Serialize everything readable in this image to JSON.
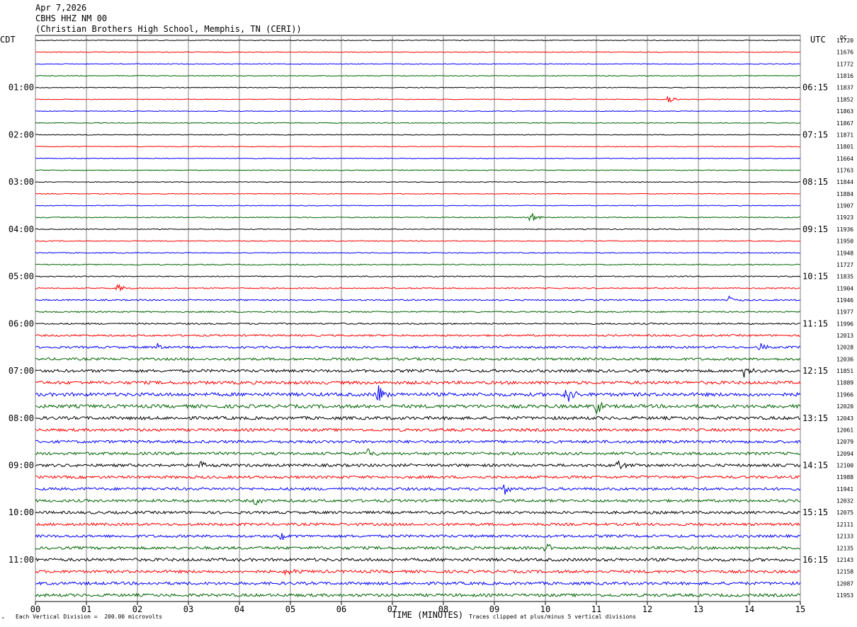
{
  "header": {
    "date": "Apr 7,2026",
    "station": "CBHS HHZ NM 00",
    "location": "(Christian Brothers High School, Memphis, TN (CERI))"
  },
  "left_tz": "CDT",
  "right_tz": "UTC",
  "dc_label": "DC",
  "footer": {
    "scale_note": "Each Vertical Division =  200.00 microvolts",
    "xlabel": "TIME (MINUTES)",
    "clip_note": "Traces clipped at plus/minus 5 vertical divisions"
  },
  "colors": {
    "cycle": [
      "#000000",
      "#ff0000",
      "#0000ff",
      "#006400"
    ],
    "grid": "#808080"
  },
  "chart_data": {
    "type": "line",
    "title": "CBHS HHZ NM 00",
    "xlabel": "TIME (MINUTES)",
    "xlim": [
      0,
      15
    ],
    "x_ticks": [
      "00",
      "01",
      "02",
      "03",
      "04",
      "05",
      "06",
      "07",
      "08",
      "09",
      "10",
      "11",
      "12",
      "13",
      "14",
      "15"
    ],
    "left_time_labels": [
      "01:00",
      "02:00",
      "03:00",
      "04:00",
      "05:00",
      "06:00",
      "07:00",
      "08:00",
      "09:00",
      "10:00",
      "11:00"
    ],
    "right_time_labels": [
      "06:15",
      "07:15",
      "08:15",
      "09:15",
      "10:15",
      "11:15",
      "12:15",
      "13:15",
      "14:15",
      "15:15",
      "16:15"
    ],
    "traces_per_hour": 4,
    "dc_offsets": [
      11720,
      11676,
      11772,
      11816,
      11837,
      11852,
      11863,
      11867,
      11871,
      11801,
      11664,
      11763,
      11844,
      11884,
      11907,
      11923,
      11936,
      11950,
      11948,
      11727,
      11835,
      11904,
      11946,
      11977,
      11996,
      12013,
      12028,
      12036,
      11851,
      11889,
      11966,
      12020,
      12043,
      12061,
      12079,
      12094,
      12100,
      11988,
      11941,
      12032,
      12075,
      12111,
      12133,
      12135,
      12143,
      12158,
      12087,
      11953
    ],
    "noise_level": [
      0.25,
      0.25,
      0.25,
      0.25,
      0.25,
      0.25,
      0.25,
      0.25,
      0.25,
      0.25,
      0.25,
      0.25,
      0.25,
      0.25,
      0.25,
      0.3,
      0.3,
      0.3,
      0.3,
      0.35,
      0.35,
      0.4,
      0.45,
      0.45,
      0.5,
      0.6,
      0.7,
      0.8,
      0.9,
      1.0,
      1.1,
      1.1,
      1.0,
      0.9,
      0.9,
      0.9,
      0.9,
      0.85,
      0.85,
      0.85,
      0.85,
      0.85,
      0.85,
      0.9,
      0.95,
      0.9,
      0.9,
      0.95
    ],
    "events": [
      {
        "trace": 15,
        "minute": 9.7,
        "amplitude": 4
      },
      {
        "trace": 5,
        "minute": 12.4,
        "amplitude": 3
      },
      {
        "trace": 21,
        "minute": 1.6,
        "amplitude": 3
      },
      {
        "trace": 22,
        "minute": 13.6,
        "amplitude": 3
      },
      {
        "trace": 26,
        "minute": 2.4,
        "amplitude": 3
      },
      {
        "trace": 26,
        "minute": 14.2,
        "amplitude": 4
      },
      {
        "trace": 28,
        "minute": 13.9,
        "amplitude": 5
      },
      {
        "trace": 30,
        "minute": 6.7,
        "amplitude": 10
      },
      {
        "trace": 30,
        "minute": 10.4,
        "amplitude": 8
      },
      {
        "trace": 31,
        "minute": 11.0,
        "amplitude": 5
      },
      {
        "trace": 35,
        "minute": 6.5,
        "amplitude": 5
      },
      {
        "trace": 36,
        "minute": 3.2,
        "amplitude": 4
      },
      {
        "trace": 36,
        "minute": 11.4,
        "amplitude": 4
      },
      {
        "trace": 38,
        "minute": 9.2,
        "amplitude": 4
      },
      {
        "trace": 39,
        "minute": 4.3,
        "amplitude": 3
      },
      {
        "trace": 42,
        "minute": 4.8,
        "amplitude": 4
      },
      {
        "trace": 43,
        "minute": 10.0,
        "amplitude": 4
      },
      {
        "trace": 45,
        "minute": 4.9,
        "amplitude": 4
      }
    ]
  }
}
